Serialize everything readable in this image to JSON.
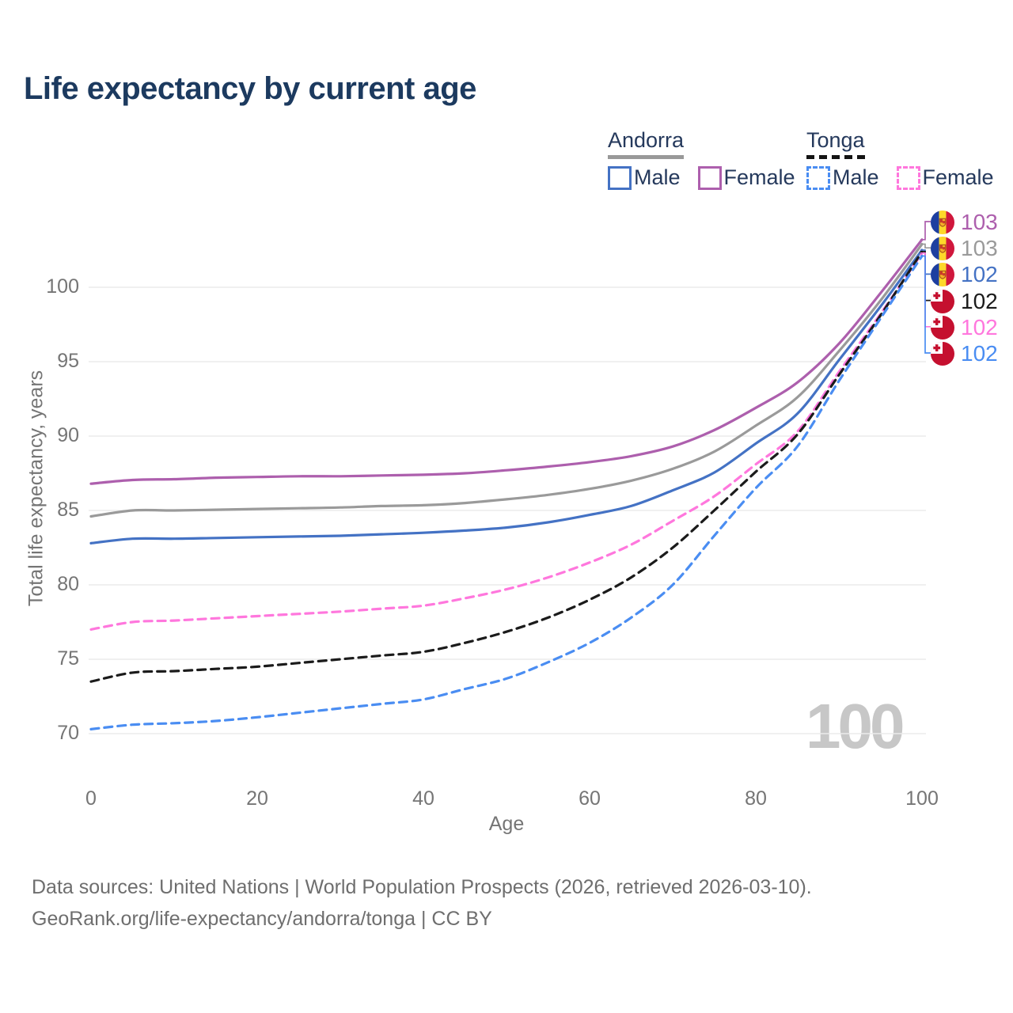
{
  "title": "Life expectancy by current age",
  "legend": {
    "andorra_label": "Andorra",
    "tonga_label": "Tonga",
    "andorra_male": "Male",
    "andorra_female": "Female",
    "tonga_male": "Male",
    "tonga_female": "Female"
  },
  "watermark": "100",
  "colors": {
    "title": "#1c3a5f",
    "andorra_male": "#4472c4",
    "andorra_female": "#ad5fad",
    "andorra_both": "#9a9a9a",
    "tonga_male": "#4a8df2",
    "tonga_female": "#ff77dd",
    "tonga_both": "#1b1b1b",
    "grid": "#ececec",
    "axis_text": "#757575"
  },
  "chart_data": {
    "type": "line",
    "title": "Life expectancy by current age",
    "xlabel": "Age",
    "ylabel": "Total life expectancy, years",
    "x": [
      0,
      5,
      10,
      15,
      20,
      25,
      30,
      35,
      40,
      45,
      50,
      55,
      60,
      65,
      70,
      75,
      80,
      85,
      90,
      95,
      100
    ],
    "xticks": [
      0,
      20,
      40,
      60,
      80,
      100
    ],
    "yticks": [
      70,
      75,
      80,
      85,
      90,
      95,
      100
    ],
    "ylim": [
      67,
      104.5
    ],
    "grid": "horizontal-only",
    "legend_position": "top-right",
    "series": [
      {
        "name": "Andorra Female",
        "color": "#ad5fad",
        "dash": "solid",
        "end_label": "103",
        "values": [
          86.8,
          87.05,
          87.1,
          87.2,
          87.25,
          87.3,
          87.3,
          87.35,
          87.4,
          87.5,
          87.7,
          87.95,
          88.25,
          88.65,
          89.3,
          90.4,
          91.9,
          93.6,
          96.2,
          99.6,
          103.2
        ]
      },
      {
        "name": "Andorra Both sexes",
        "color": "#9a9a9a",
        "dash": "solid",
        "end_label": "103",
        "values": [
          84.6,
          85.0,
          85.0,
          85.05,
          85.1,
          85.15,
          85.2,
          85.3,
          85.35,
          85.5,
          85.75,
          86.05,
          86.45,
          87.0,
          87.8,
          88.95,
          90.7,
          92.6,
          95.7,
          99.1,
          102.9
        ]
      },
      {
        "name": "Andorra Male",
        "color": "#4472c4",
        "dash": "solid",
        "end_label": "102",
        "values": [
          82.8,
          83.1,
          83.1,
          83.15,
          83.2,
          83.25,
          83.3,
          83.4,
          83.5,
          83.65,
          83.85,
          84.2,
          84.7,
          85.3,
          86.35,
          87.55,
          89.5,
          91.5,
          95.1,
          98.7,
          102.5
        ]
      },
      {
        "name": "Tonga Female",
        "color": "#ff77dd",
        "dash": "dashed",
        "end_label": "102",
        "values": [
          77.0,
          77.5,
          77.6,
          77.75,
          77.9,
          78.05,
          78.2,
          78.4,
          78.6,
          79.1,
          79.7,
          80.5,
          81.5,
          82.7,
          84.3,
          85.95,
          88.1,
          90.3,
          94.3,
          98.2,
          102.3
        ]
      },
      {
        "name": "Tonga Both sexes",
        "color": "#1b1b1b",
        "dash": "dashed",
        "end_label": "102",
        "values": [
          73.5,
          74.1,
          74.2,
          74.35,
          74.5,
          74.75,
          75.0,
          75.25,
          75.5,
          76.1,
          76.85,
          77.8,
          79.0,
          80.5,
          82.5,
          85.0,
          87.6,
          90.1,
          94.1,
          98.1,
          102.4
        ]
      },
      {
        "name": "Tonga Male",
        "color": "#4a8df2",
        "dash": "dashed",
        "end_label": "102",
        "values": [
          70.3,
          70.6,
          70.7,
          70.85,
          71.1,
          71.4,
          71.7,
          72.0,
          72.3,
          73.0,
          73.7,
          74.8,
          76.1,
          77.8,
          80.0,
          83.3,
          86.5,
          89.3,
          93.7,
          97.9,
          102.1
        ]
      }
    ]
  },
  "end_labels": [
    {
      "flag": "andorra",
      "value": "103",
      "color": "#ad5fad",
      "series": 0
    },
    {
      "flag": "andorra",
      "value": "103",
      "color": "#9a9a9a",
      "series": 1
    },
    {
      "flag": "andorra",
      "value": "102",
      "color": "#4472c4",
      "series": 2
    },
    {
      "flag": "tonga",
      "value": "102",
      "color": "#1b1b1b",
      "series": 4
    },
    {
      "flag": "tonga",
      "value": "102",
      "color": "#ff77dd",
      "series": 3
    },
    {
      "flag": "tonga",
      "value": "102",
      "color": "#4a8df2",
      "series": 5
    }
  ],
  "footer": {
    "line1": "Data sources: United Nations | World Population Prospects (2026, retrieved 2026-03-10).",
    "line2": "GeoRank.org/life-expectancy/andorra/tonga | CC BY"
  }
}
